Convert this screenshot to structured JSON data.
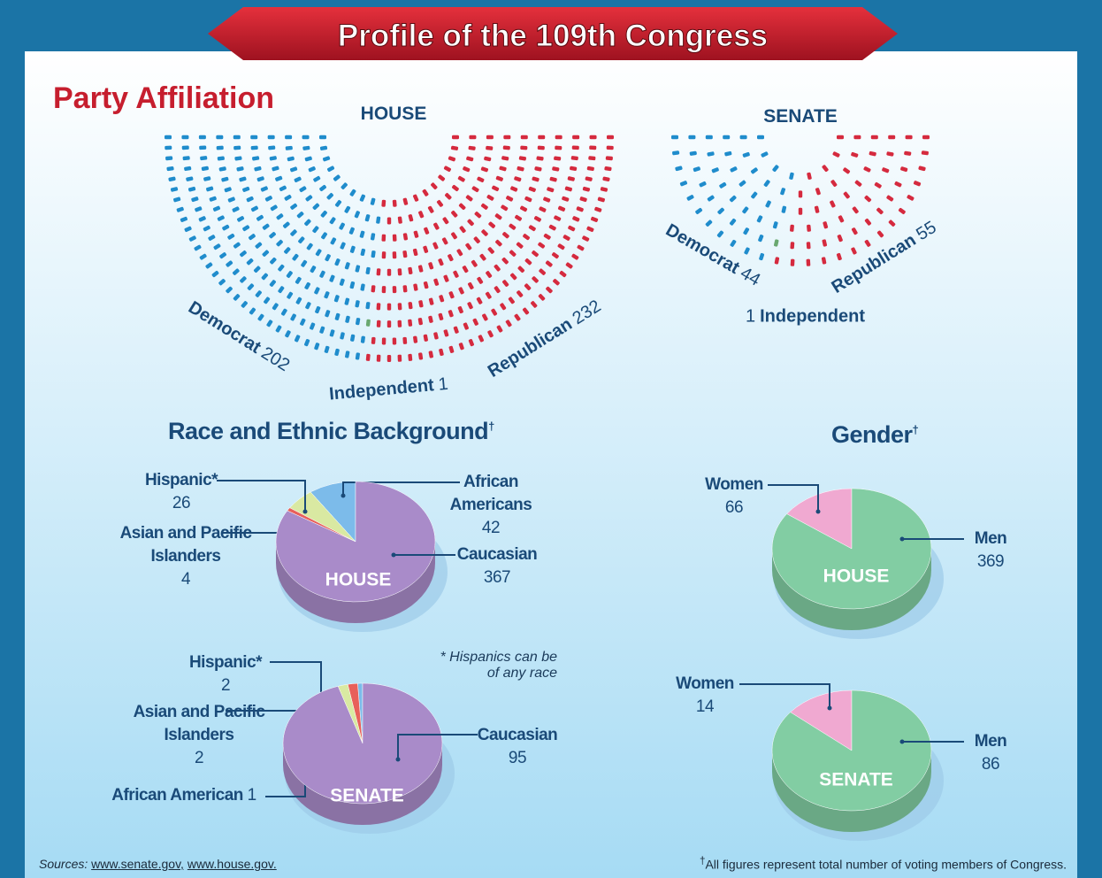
{
  "title": "Profile of the 109th Congress",
  "section_title": "Party Affiliation",
  "race_title": "Race and Ethnic Background",
  "race_mark": "†",
  "gender_title": "Gender",
  "gender_mark": "†",
  "note": "* Hispanics can be of any race",
  "sources_label": "Sources:",
  "sources": [
    "www.senate.gov,",
    "www.house.gov."
  ],
  "footnote_mark": "†",
  "footnote": "All figures represent total number of voting members of Congress.",
  "chart_data": [
    {
      "type": "parliament",
      "title": "HOUSE",
      "categories": [
        "Democrat",
        "Independent",
        "Republican"
      ],
      "values": [
        202,
        1,
        232
      ],
      "colors": [
        "#1f8ccc",
        "#6aa870",
        "#d52a3e"
      ]
    },
    {
      "type": "parliament",
      "title": "SENATE",
      "categories": [
        "Democrat",
        "Independent",
        "Republican"
      ],
      "values": [
        44,
        1,
        55
      ],
      "colors": [
        "#1f8ccc",
        "#6aa870",
        "#d52a3e"
      ]
    },
    {
      "type": "pie",
      "title": "HOUSE",
      "categories": [
        "African Americans",
        "Hispanic*",
        "Asian and Pacific Islanders",
        "Caucasian"
      ],
      "values": [
        42,
        26,
        4,
        367
      ],
      "colors": [
        "#7cbbea",
        "#d9e9a2",
        "#e8605a",
        "#a98bc9"
      ]
    },
    {
      "type": "pie",
      "title": "SENATE",
      "categories": [
        "African American",
        "Asian and Pacific Islanders",
        "Hispanic*",
        "Caucasian"
      ],
      "values": [
        1,
        2,
        2,
        95
      ],
      "colors": [
        "#7cbbea",
        "#e8605a",
        "#d9e9a2",
        "#a98bc9"
      ]
    },
    {
      "type": "pie",
      "title": "HOUSE",
      "categories": [
        "Women",
        "Men"
      ],
      "values": [
        66,
        369
      ],
      "colors": [
        "#f0a9d1",
        "#82cda3"
      ]
    },
    {
      "type": "pie",
      "title": "SENATE",
      "categories": [
        "Women",
        "Men"
      ],
      "values": [
        14,
        86
      ],
      "colors": [
        "#f0a9d1",
        "#82cda3"
      ]
    }
  ]
}
